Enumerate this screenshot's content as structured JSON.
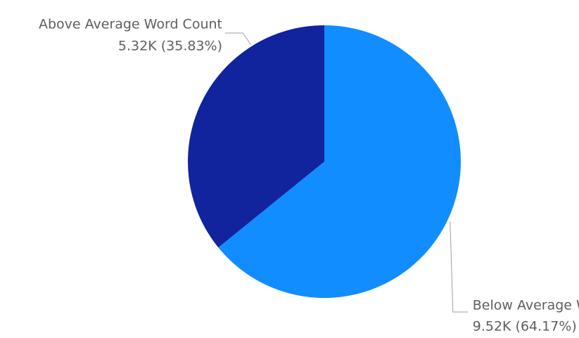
{
  "chart_data": {
    "type": "pie",
    "categories": [
      "Below Average Word Count",
      "Above Average Word Count"
    ],
    "values": [
      9520,
      5320
    ],
    "value_labels": [
      "9.52K (64.17%)",
      "5.32K (35.83%)"
    ],
    "colors": [
      "#118dff",
      "#12239e"
    ]
  }
}
